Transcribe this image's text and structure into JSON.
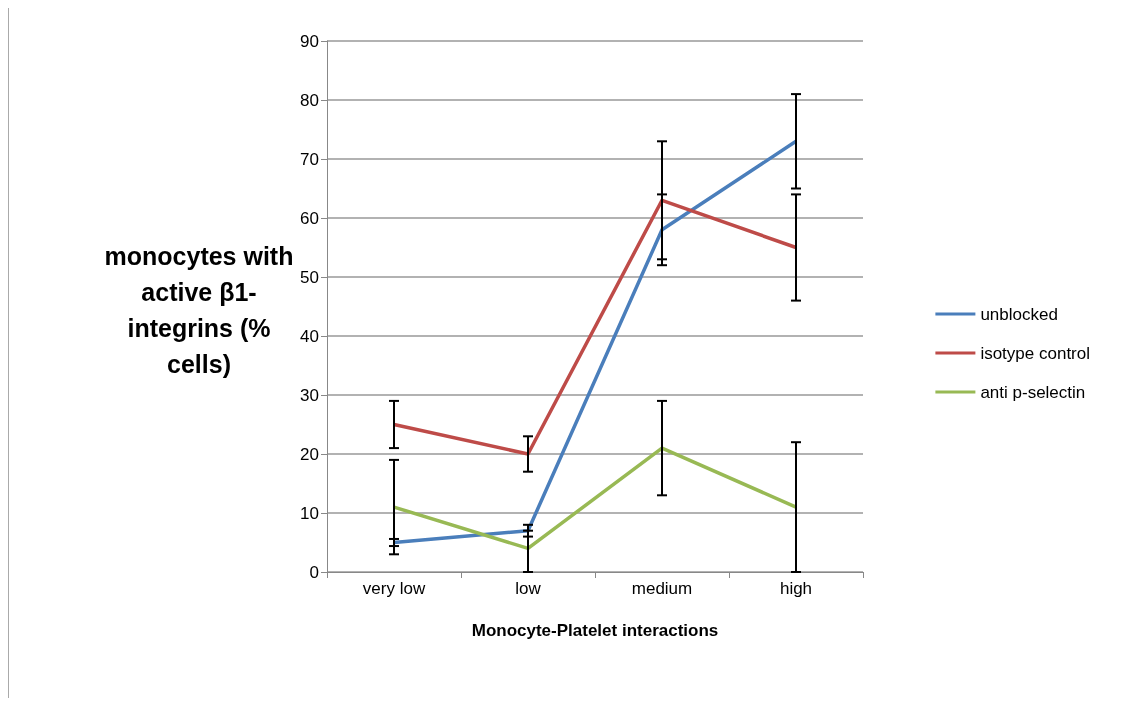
{
  "chart_data": {
    "type": "line",
    "xlabel": "Monocyte-Platelet interactions",
    "ylabel": "monocytes with active β1-integrins (% cells)",
    "categories": [
      "very low",
      "low",
      "medium",
      "high"
    ],
    "series": [
      {
        "name": "unblocked",
        "color": "#4a7ebb",
        "values": [
          5,
          7,
          58,
          73
        ],
        "errors": [
          [
            4.4,
            5.6
          ],
          [
            6,
            8
          ],
          [
            52,
            64
          ],
          [
            65,
            81
          ]
        ]
      },
      {
        "name": "isotype control",
        "color": "#be4b48",
        "values": [
          25,
          20,
          63,
          55
        ],
        "errors": [
          [
            21,
            29
          ],
          [
            17,
            23
          ],
          [
            53,
            73
          ],
          [
            46,
            64
          ]
        ]
      },
      {
        "name": "anti p-selectin",
        "color": "#98b954",
        "values": [
          11,
          4,
          21,
          11
        ],
        "errors": [
          [
            3,
            19
          ],
          [
            0,
            7
          ],
          [
            13,
            29
          ],
          [
            0,
            22
          ]
        ]
      }
    ],
    "ylim": [
      0,
      90
    ],
    "yticks": [
      0,
      10,
      20,
      30,
      40,
      50,
      60,
      70,
      80,
      90
    ],
    "grid": "y",
    "legend": "right",
    "marker": "none"
  }
}
